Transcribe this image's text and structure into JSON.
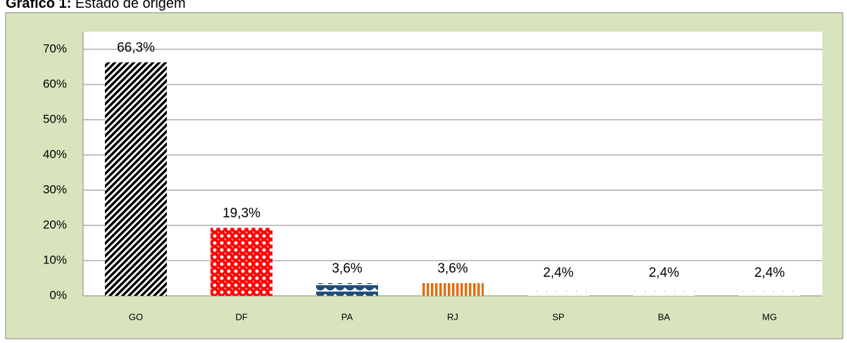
{
  "chart_data": {
    "type": "bar",
    "title_prefix": "Gráfico 1:",
    "title": "Estado de origem",
    "categories": [
      "GO",
      "DF",
      "PA",
      "RJ",
      "SP",
      "BA",
      "MG"
    ],
    "values": [
      66.3,
      19.3,
      3.6,
      3.6,
      2.4,
      2.4,
      2.4
    ],
    "value_labels": [
      "66,3%",
      "19,3%",
      "3,6%",
      "3,6%",
      "2,4%",
      "2,4%",
      "2,4%"
    ],
    "colors": [
      "#000000",
      "#ff0000",
      "#1f4e79",
      "#e46c0a",
      "#7f7f7f",
      "#7f7f7f",
      "#7f7f7f"
    ],
    "ylim": [
      0,
      75
    ],
    "yticks": [
      {
        "value": 0,
        "label": "0%"
      },
      {
        "value": 10,
        "label": "10%"
      },
      {
        "value": 20,
        "label": "20%"
      },
      {
        "value": 30,
        "label": "30%"
      },
      {
        "value": 40,
        "label": "40%"
      },
      {
        "value": 50,
        "label": "50%"
      },
      {
        "value": 60,
        "label": "60%"
      },
      {
        "value": 70,
        "label": "70%"
      }
    ],
    "grid": true
  }
}
